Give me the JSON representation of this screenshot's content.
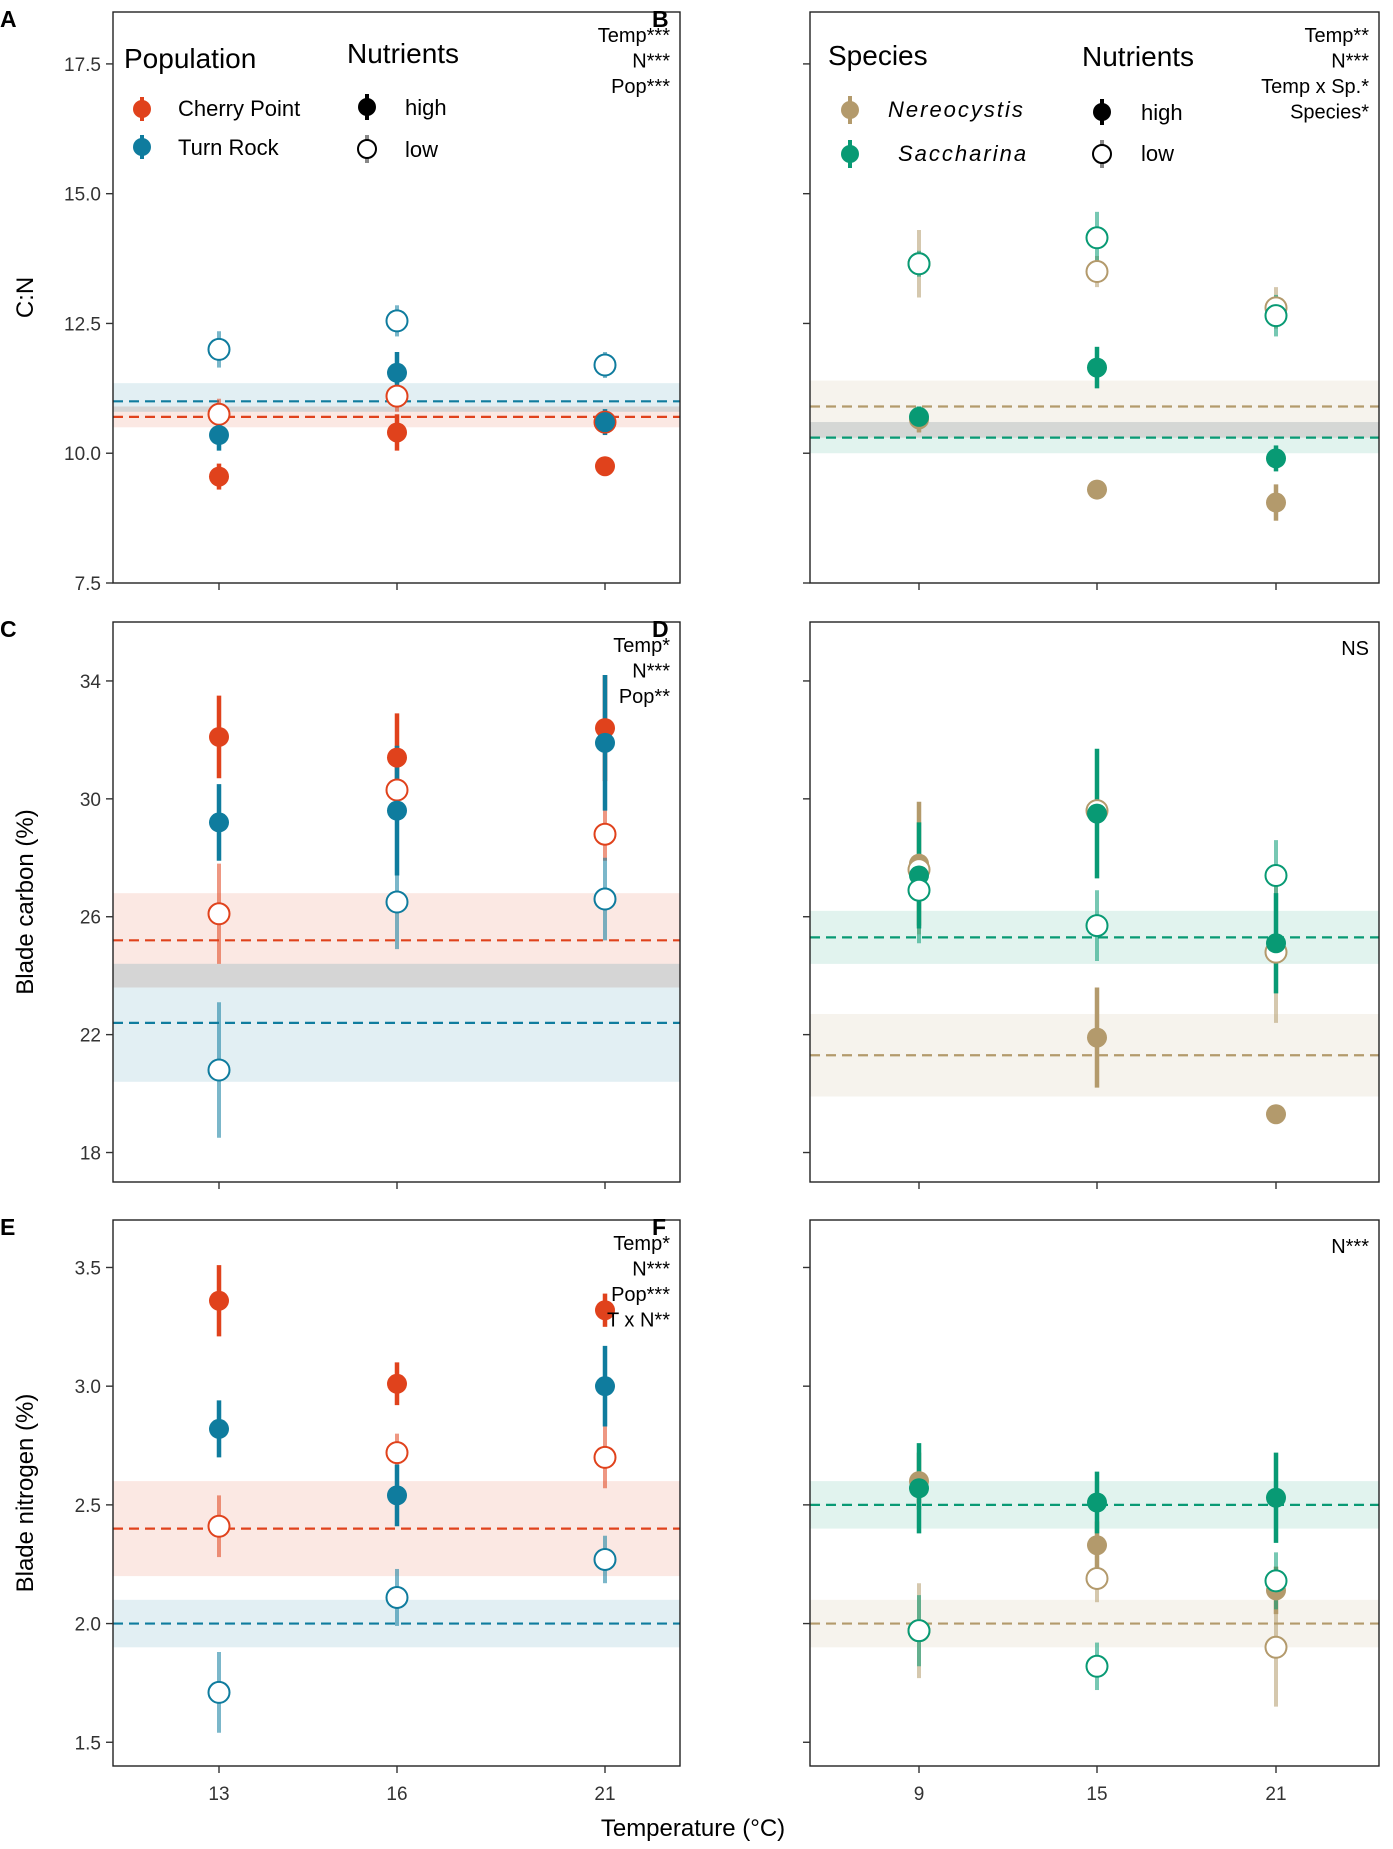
{
  "x_axis_title": "Temperature (°C)",
  "colors": {
    "cherry_point": "#e0421c",
    "turn_rock": "#0f7c9e",
    "nereocystis": "#b39a6c",
    "saccharina": "#089a74",
    "grey_band": "#d4d4d4"
  },
  "legends": {
    "population_title": "Population",
    "species_title": "Species",
    "nutrients_title": "Nutrients",
    "cherry_point": "Cherry Point",
    "turn_rock": "Turn Rock",
    "nereocystis": "Nereocystis",
    "saccharina": "Saccharina",
    "high": "high",
    "low": "low"
  },
  "chart_data": [
    {
      "panel": "A",
      "type": "scatter",
      "ylabel": "C:N",
      "xlabel": "",
      "x_ticks": [
        "13",
        "16",
        "21"
      ],
      "ylim": [
        7.5,
        18.5
      ],
      "y_ticks": [
        7.5,
        10.0,
        12.5,
        15.0,
        17.5
      ],
      "y_tick_labels": [
        "7.5",
        "10.0",
        "12.5",
        "15.0",
        "17.5"
      ],
      "stats": [
        "Temp***",
        "N***",
        "Pop***"
      ],
      "series": [
        {
          "name": "Cherry Point - high",
          "group": "cherry_point",
          "nutrients": "high",
          "values": [
            9.55,
            10.4,
            9.75
          ],
          "err": [
            0.25,
            0.35,
            0.15
          ]
        },
        {
          "name": "Cherry Point - low",
          "group": "cherry_point",
          "nutrients": "low",
          "values": [
            10.75,
            11.1,
            10.6
          ],
          "err": [
            0.3,
            0.3,
            0.2
          ]
        },
        {
          "name": "Turn Rock - high",
          "group": "turn_rock",
          "nutrients": "high",
          "values": [
            10.35,
            11.55,
            10.6
          ],
          "err": [
            0.3,
            0.4,
            0.25
          ]
        },
        {
          "name": "Turn Rock - low",
          "group": "turn_rock",
          "nutrients": "low",
          "values": [
            12.0,
            12.55,
            11.7
          ],
          "err": [
            0.35,
            0.3,
            0.25
          ]
        }
      ],
      "baselines": [
        {
          "group": "cherry_point",
          "value": 10.7,
          "band": [
            10.5,
            10.9
          ]
        },
        {
          "group": "turn_rock",
          "value": 11.0,
          "band": [
            10.8,
            11.35
          ]
        }
      ]
    },
    {
      "panel": "B",
      "type": "scatter",
      "ylabel": "",
      "xlabel": "",
      "x_ticks": [
        "9",
        "15",
        "21"
      ],
      "ylim": [
        7.5,
        18.5
      ],
      "y_ticks": [
        7.5,
        10.0,
        12.5,
        15.0,
        17.5
      ],
      "stats": [
        "Temp**",
        "N***",
        "Temp x Sp.*",
        "Species*"
      ],
      "series": [
        {
          "name": "Nereocystis - high",
          "group": "nereocystis",
          "nutrients": "high",
          "values": [
            10.65,
            9.3,
            9.05
          ],
          "err": [
            0.25,
            0.15,
            0.35
          ]
        },
        {
          "name": "Nereocystis - low",
          "group": "nereocystis",
          "nutrients": "low",
          "values": [
            13.65,
            13.5,
            12.8
          ],
          "err": [
            0.65,
            0.3,
            0.4
          ]
        },
        {
          "name": "Saccharina - high",
          "group": "saccharina",
          "nutrients": "high",
          "values": [
            10.7,
            11.65,
            9.9
          ],
          "err": [
            0.2,
            0.4,
            0.25
          ]
        },
        {
          "name": "Saccharina - low",
          "group": "saccharina",
          "nutrients": "low",
          "values": [
            13.65,
            14.15,
            12.65
          ],
          "err": [
            0.25,
            0.5,
            0.4
          ]
        }
      ],
      "baselines": [
        {
          "group": "nereocystis",
          "value": 10.9,
          "band": [
            10.3,
            11.4
          ]
        },
        {
          "group": "saccharina",
          "value": 10.3,
          "band": [
            10.0,
            10.6
          ]
        }
      ]
    },
    {
      "panel": "C",
      "type": "scatter",
      "ylabel": "Blade carbon (%)",
      "xlabel": "",
      "x_ticks": [
        "13",
        "16",
        "21"
      ],
      "ylim": [
        17.0,
        36.0
      ],
      "y_ticks": [
        18,
        22,
        26,
        30,
        34
      ],
      "y_tick_labels": [
        "18",
        "22",
        "26",
        "30",
        "34"
      ],
      "stats": [
        "Temp*",
        "N***",
        "Pop**"
      ],
      "series": [
        {
          "name": "Cherry Point - high",
          "group": "cherry_point",
          "nutrients": "high",
          "values": [
            32.1,
            31.4,
            32.4
          ],
          "err": [
            1.4,
            1.5,
            1.8
          ]
        },
        {
          "name": "Cherry Point - low",
          "group": "cherry_point",
          "nutrients": "low",
          "values": [
            26.1,
            30.3,
            28.8
          ],
          "err": [
            1.7,
            0.8,
            0.9
          ]
        },
        {
          "name": "Turn Rock - high",
          "group": "turn_rock",
          "nutrients": "high",
          "values": [
            29.2,
            29.6,
            31.9
          ],
          "err": [
            1.3,
            2.2,
            2.3
          ]
        },
        {
          "name": "Turn Rock - low",
          "group": "turn_rock",
          "nutrients": "low",
          "values": [
            20.8,
            26.5,
            26.6
          ],
          "err": [
            2.3,
            1.6,
            1.4
          ]
        }
      ],
      "baselines": [
        {
          "group": "cherry_point",
          "value": 25.2,
          "band": [
            23.6,
            26.8
          ]
        },
        {
          "group": "turn_rock",
          "value": 22.4,
          "band": [
            20.4,
            24.4
          ]
        }
      ]
    },
    {
      "panel": "D",
      "type": "scatter",
      "ylabel": "",
      "xlabel": "",
      "x_ticks": [
        "9",
        "15",
        "21"
      ],
      "ylim": [
        17.0,
        36.0
      ],
      "y_ticks": [
        18,
        22,
        26,
        30,
        34
      ],
      "stats": [
        "NS"
      ],
      "series": [
        {
          "name": "Nereocystis - high",
          "group": "nereocystis",
          "nutrients": "high",
          "values": [
            27.8,
            21.9,
            19.3
          ],
          "err": [
            2.1,
            1.7,
            0.3
          ]
        },
        {
          "name": "Nereocystis - low",
          "group": "nereocystis",
          "nutrients": "low",
          "values": [
            27.6,
            29.6,
            24.8
          ],
          "err": [
            2.2,
            0.5,
            2.4
          ]
        },
        {
          "name": "Saccharina - high",
          "group": "saccharina",
          "nutrients": "high",
          "values": [
            27.4,
            29.5,
            25.1
          ],
          "err": [
            1.8,
            2.2,
            1.7
          ]
        },
        {
          "name": "Saccharina - low",
          "group": "saccharina",
          "nutrients": "low",
          "values": [
            26.9,
            25.7,
            27.4
          ],
          "err": [
            1.8,
            1.2,
            1.2
          ]
        }
      ],
      "baselines": [
        {
          "group": "nereocystis",
          "value": 21.3,
          "band": [
            19.9,
            22.7
          ]
        },
        {
          "group": "saccharina",
          "value": 25.3,
          "band": [
            24.4,
            26.2
          ]
        }
      ]
    },
    {
      "panel": "E",
      "type": "scatter",
      "ylabel": "Blade nitrogen (%)",
      "xlabel": "Temperature (°C)",
      "x_ticks": [
        "13",
        "16",
        "21"
      ],
      "ylim": [
        1.4,
        3.7
      ],
      "y_ticks": [
        1.5,
        2.0,
        2.5,
        3.0,
        3.5
      ],
      "y_tick_labels": [
        "1.5",
        "2.0",
        "2.5",
        "3.0",
        "3.5"
      ],
      "stats": [
        "Temp*",
        "N***",
        "Pop***",
        "T x N**"
      ],
      "series": [
        {
          "name": "Cherry Point - high",
          "group": "cherry_point",
          "nutrients": "high",
          "values": [
            3.36,
            3.01,
            3.32
          ],
          "err": [
            0.15,
            0.09,
            0.07
          ]
        },
        {
          "name": "Cherry Point - low",
          "group": "cherry_point",
          "nutrients": "low",
          "values": [
            2.41,
            2.72,
            2.7
          ],
          "err": [
            0.13,
            0.08,
            0.13
          ]
        },
        {
          "name": "Turn Rock - high",
          "group": "turn_rock",
          "nutrients": "high",
          "values": [
            2.82,
            2.54,
            3.0
          ],
          "err": [
            0.12,
            0.13,
            0.17
          ]
        },
        {
          "name": "Turn Rock - low",
          "group": "turn_rock",
          "nutrients": "low",
          "values": [
            1.71,
            2.11,
            2.27
          ],
          "err": [
            0.17,
            0.12,
            0.1
          ]
        }
      ],
      "baselines": [
        {
          "group": "cherry_point",
          "value": 2.4,
          "band": [
            2.2,
            2.6
          ]
        },
        {
          "group": "turn_rock",
          "value": 2.0,
          "band": [
            1.9,
            2.1
          ]
        }
      ]
    },
    {
      "panel": "F",
      "type": "scatter",
      "ylabel": "",
      "xlabel": "Temperature (°C)",
      "x_ticks": [
        "9",
        "15",
        "21"
      ],
      "ylim": [
        1.4,
        3.7
      ],
      "y_ticks": [
        1.5,
        2.0,
        2.5,
        3.0,
        3.5
      ],
      "stats": [
        "N***"
      ],
      "series": [
        {
          "name": "Nereocystis - high",
          "group": "nereocystis",
          "nutrients": "high",
          "values": [
            2.6,
            2.33,
            2.14
          ],
          "err": [
            0.12,
            0.1,
            0.1
          ]
        },
        {
          "name": "Nereocystis - low",
          "group": "nereocystis",
          "nutrients": "low",
          "values": [
            1.97,
            2.19,
            1.9
          ],
          "err": [
            0.2,
            0.1,
            0.25
          ]
        },
        {
          "name": "Saccharina - high",
          "group": "saccharina",
          "nutrients": "high",
          "values": [
            2.57,
            2.51,
            2.53
          ],
          "err": [
            0.19,
            0.13,
            0.19
          ]
        },
        {
          "name": "Saccharina - low",
          "group": "saccharina",
          "nutrients": "low",
          "values": [
            1.97,
            1.82,
            2.18
          ],
          "err": [
            0.15,
            0.1,
            0.12
          ]
        }
      ],
      "baselines": [
        {
          "group": "nereocystis",
          "value": 2.0,
          "band": [
            1.9,
            2.1
          ]
        },
        {
          "group": "saccharina",
          "value": 2.5,
          "band": [
            2.4,
            2.6
          ]
        }
      ]
    }
  ]
}
